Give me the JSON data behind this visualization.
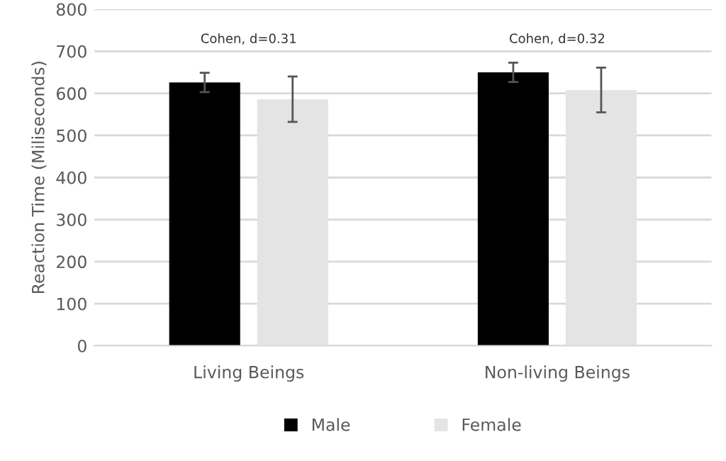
{
  "chart_data": {
    "type": "bar",
    "ylabel": "Reaction Time (Miliseconds)",
    "categories": [
      "Living Beings",
      "Non-living Beings"
    ],
    "series": [
      {
        "name": "Male",
        "color": "#000000",
        "values": [
          626,
          650
        ],
        "errors": [
          23,
          23
        ]
      },
      {
        "name": "Female",
        "color": "#e4e4e4",
        "values": [
          586,
          608
        ],
        "errors": [
          54,
          53
        ]
      }
    ],
    "annotations": [
      "Cohen, d=0.31",
      "Cohen, d=0.32"
    ],
    "ylim": [
      0,
      800
    ],
    "yticks": [
      0,
      100,
      200,
      300,
      400,
      500,
      600,
      700,
      800
    ],
    "grid": "y",
    "legend": "bottom"
  }
}
